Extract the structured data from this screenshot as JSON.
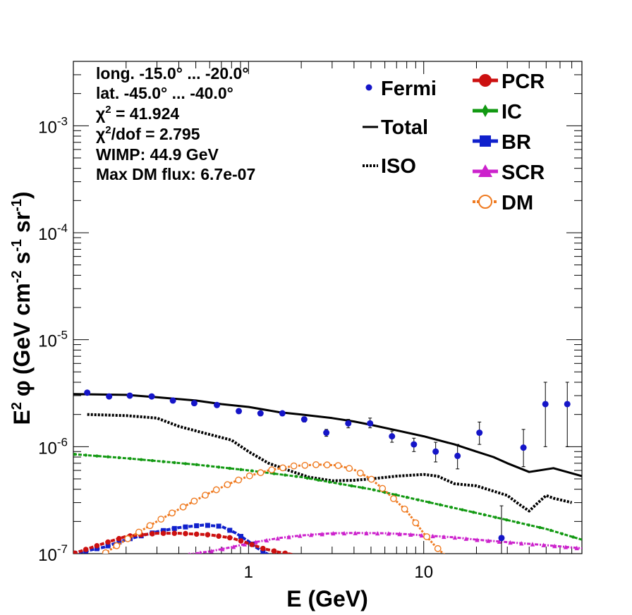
{
  "chart_data": {
    "type": "scatter",
    "x_scale": "log",
    "y_scale": "log",
    "xlim": [
      0.1,
      80
    ],
    "ylim": [
      1e-07,
      0.004
    ],
    "xlabel": "E (GeV)",
    "ylabel_parts": {
      "e": "E",
      "e_sup": "2",
      "phi": "φ",
      "open": "(GeV cm",
      "cm_sup": "-2",
      "s": " s",
      "s_sup": "-1",
      "sr": " sr",
      "sr_sup": "-1",
      "close": ")"
    },
    "x_ticks": [
      {
        "value": 1,
        "label": "1"
      },
      {
        "value": 10,
        "label": "10"
      }
    ],
    "y_ticks": [
      {
        "value": 1e-07,
        "base": "10",
        "exp": "-7"
      },
      {
        "value": 1e-06,
        "base": "10",
        "exp": "-6"
      },
      {
        "value": 1e-05,
        "base": "10",
        "exp": "-5"
      },
      {
        "value": 0.0001,
        "base": "10",
        "exp": "-4"
      },
      {
        "value": 0.001,
        "base": "10",
        "exp": "-3"
      }
    ],
    "info": {
      "long": "long. -15.0° ... -20.0°",
      "lat": "lat. -45.0° ... -40.0°",
      "chi2_sym": "χ",
      "chi2_sup": "2",
      "chi2_value": " = 41.924",
      "chi2dof_sup": "2",
      "chi2dof_value": "/dof = 2.795",
      "wimp": "WIMP: 44.9 GeV",
      "maxdm": "Max DM flux: 6.7e-07"
    },
    "legend_left": [
      {
        "key": "fermi",
        "label": "Fermi"
      },
      {
        "key": "total",
        "label": "Total"
      },
      {
        "key": "iso",
        "label": "ISO"
      }
    ],
    "legend_right": [
      {
        "key": "pcr",
        "label": "PCR"
      },
      {
        "key": "ic",
        "label": "IC"
      },
      {
        "key": "br",
        "label": "BR"
      },
      {
        "key": "scr",
        "label": "SCR"
      },
      {
        "key": "dm",
        "label": "DM"
      }
    ],
    "colors": {
      "fermi": "#1515c8",
      "total": "#000000",
      "iso": "#000000",
      "pcr": "#cc1010",
      "ic": "#129912",
      "br": "#1020cc",
      "scr": "#cc22cc",
      "dm": "#ef7a20"
    },
    "fermi": {
      "x": [
        0.12,
        0.16,
        0.21,
        0.28,
        0.37,
        0.49,
        0.66,
        0.88,
        1.17,
        1.56,
        2.08,
        2.78,
        3.71,
        4.94,
        6.59,
        8.79,
        11.7,
        15.6,
        20.8,
        27.8,
        37.1,
        49.5,
        66.0
      ],
      "y": [
        3.2e-06,
        2.95e-06,
        3e-06,
        2.95e-06,
        2.7e-06,
        2.55e-06,
        2.45e-06,
        2.15e-06,
        2.05e-06,
        2.05e-06,
        1.8e-06,
        1.35e-06,
        1.65e-06,
        1.65e-06,
        1.25e-06,
        1.05e-06,
        9e-07,
        8.2e-07,
        1.35e-06,
        1.4e-07,
        9.8e-07,
        2.5e-06,
        2.5e-06
      ],
      "y_err_lo": [
        3.05e-06,
        2.85e-06,
        2.9e-06,
        2.85e-06,
        2.6e-06,
        2.45e-06,
        2.35e-06,
        2.05e-06,
        1.95e-06,
        1.95e-06,
        1.7e-06,
        1.25e-06,
        1.5e-06,
        1.5e-06,
        1.1e-06,
        9e-07,
        7.2e-07,
        6.2e-07,
        1.05e-06,
        1e-07,
        6.5e-07,
        1e-06,
        1e-06
      ],
      "y_err_hi": [
        3.35e-06,
        3.05e-06,
        3.1e-06,
        3.05e-06,
        2.8e-06,
        2.65e-06,
        2.55e-06,
        2.25e-06,
        2.15e-06,
        2.15e-06,
        1.9e-06,
        1.45e-06,
        1.8e-06,
        1.85e-06,
        1.4e-06,
        1.2e-06,
        1.1e-06,
        1.05e-06,
        1.7e-06,
        2.8e-07,
        1.45e-06,
        4e-06,
        4e-06
      ]
    },
    "total": {
      "x": [
        0.1,
        0.2,
        0.3,
        0.5,
        0.7,
        1.0,
        1.5,
        2.0,
        3.0,
        4.0,
        5.0,
        7.0,
        10,
        15,
        20,
        25,
        30,
        40,
        55,
        80
      ],
      "y": [
        3.1e-06,
        3.05e-06,
        2.9e-06,
        2.7e-06,
        2.5e-06,
        2.35e-06,
        2.1e-06,
        2e-06,
        1.85e-06,
        1.72e-06,
        1.6e-06,
        1.42e-06,
        1.25e-06,
        1.05e-06,
        9e-07,
        8e-07,
        7e-07,
        5.8e-07,
        6.3e-07,
        5.3e-07
      ]
    },
    "iso": {
      "x": [
        0.12,
        0.2,
        0.3,
        0.4,
        0.55,
        0.8,
        1.0,
        1.3,
        1.7,
        2.2,
        3.0,
        4.0,
        5.0,
        7.0,
        10,
        12,
        15,
        20,
        30,
        35,
        40,
        45,
        50,
        55,
        70
      ],
      "y": [
        2e-06,
        1.95e-06,
        1.85e-06,
        1.55e-06,
        1.35e-06,
        1.15e-06,
        9e-07,
        7e-07,
        6e-07,
        5.2e-07,
        4.8e-07,
        4.85e-07,
        5e-07,
        5.3e-07,
        5.5e-07,
        5.3e-07,
        4.5e-07,
        4.3e-07,
        3.5e-07,
        2.9e-07,
        2.5e-07,
        3e-07,
        3.5e-07,
        3.3e-07,
        3e-07
      ]
    },
    "ic": {
      "x": [
        0.1,
        0.2,
        0.5,
        1.0,
        2.0,
        5.0,
        10,
        20,
        50,
        80
      ],
      "y": [
        8.5e-07,
        7.8e-07,
        6.8e-07,
        6e-07,
        5.2e-07,
        4e-07,
        3.1e-07,
        2.4e-07,
        1.7e-07,
        1.35e-07
      ]
    },
    "pcr": {
      "x": [
        0.1,
        0.15,
        0.2,
        0.3,
        0.4,
        0.6,
        0.8,
        1.0,
        1.2,
        1.5,
        1.8
      ],
      "y": [
        1e-07,
        1.25e-07,
        1.45e-07,
        1.55e-07,
        1.55e-07,
        1.5e-07,
        1.4e-07,
        1.25e-07,
        1.12e-07,
        1.03e-07,
        9.8e-08
      ]
    },
    "br": {
      "x": [
        0.1,
        0.15,
        0.2,
        0.3,
        0.4,
        0.55,
        0.7,
        0.85,
        1.0,
        1.1,
        1.3
      ],
      "y": [
        1e-07,
        1.15e-07,
        1.35e-07,
        1.6e-07,
        1.75e-07,
        1.85e-07,
        1.8e-07,
        1.55e-07,
        1.3e-07,
        1.15e-07,
        9.8e-08
      ]
    },
    "scr": {
      "x": [
        0.45,
        0.6,
        0.8,
        1.0,
        1.5,
        2.0,
        3.0,
        4.0,
        6.0,
        8.0,
        10,
        15,
        20,
        30,
        50,
        80
      ],
      "y": [
        9.8e-08,
        1.05e-07,
        1.15e-07,
        1.25e-07,
        1.4e-07,
        1.48e-07,
        1.55e-07,
        1.56e-07,
        1.55e-07,
        1.52e-07,
        1.48e-07,
        1.42e-07,
        1.35e-07,
        1.28e-07,
        1.2e-07,
        1.12e-07
      ]
    },
    "dm": {
      "x": [
        0.15,
        0.2,
        0.3,
        0.4,
        0.6,
        0.8,
        1.0,
        1.3,
        1.8,
        2.5,
        3.2,
        4.0,
        5.0,
        6.0,
        8.0,
        10,
        11.5,
        12.5,
        13.5
      ],
      "y": [
        1e-07,
        1.35e-07,
        2e-07,
        2.6e-07,
        3.7e-07,
        4.6e-07,
        5.3e-07,
        6e-07,
        6.6e-07,
        6.8e-07,
        6.7e-07,
        6.1e-07,
        5e-07,
        3.9e-07,
        2.5e-07,
        1.55e-07,
        1.2e-07,
        1.05e-07,
        9.5e-08
      ]
    }
  }
}
